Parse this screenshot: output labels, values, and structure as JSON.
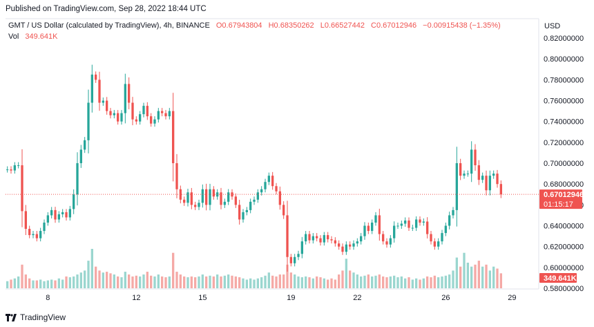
{
  "header": {
    "published": "Published on TradingView.com, Sep 28, 2022 18:44 UTC"
  },
  "legend": {
    "symbol": "GMT / US Dollar (calculated by TradingView), 4h, BINANCE",
    "open": "O0.67943804",
    "high": "H0.68350262",
    "low": "L0.66527442",
    "close": "C0.67012946",
    "change": "−0.00915438 (−1.35%)",
    "vol_label": "Vol",
    "vol_value": "349.641K"
  },
  "price_axis": {
    "currency": "USD",
    "last_price_label": "0.67012946",
    "countdown_label": "01:15:17",
    "volume_label": "349.641K"
  },
  "footer": {
    "logo_text": "TradingView"
  },
  "colors": {
    "up": "#26a69a",
    "down": "#ef5350",
    "vol_up": "#9ad6cf",
    "vol_down": "#f5a9a6"
  },
  "chart_data": {
    "type": "candlestick",
    "ylim": [
      0.58,
      0.83
    ],
    "yticks": [
      0.58,
      0.6,
      0.62,
      0.64,
      0.66,
      0.68,
      0.7,
      0.72,
      0.74,
      0.76,
      0.78,
      0.8,
      0.82
    ],
    "ytick_labels": [
      "0.58000000",
      "0.60000000",
      "0.62000000",
      "0.64000000",
      "0.66000000",
      "0.68000000",
      "0.70000000",
      "0.72000000",
      "0.74000000",
      "0.76000000",
      "0.78000000",
      "0.80000000",
      "0.82000000"
    ],
    "xticks": [
      {
        "label": "8",
        "index": 11
      },
      {
        "label": "12",
        "index": 35
      },
      {
        "label": "15",
        "index": 53
      },
      {
        "label": "19",
        "index": 77
      },
      {
        "label": "22",
        "index": 95
      },
      {
        "label": "26",
        "index": 119
      },
      {
        "label": "29",
        "index": 137
      }
    ],
    "last_price": 0.67012946,
    "close": [
      0.694,
      0.693,
      0.698,
      0.698,
      0.654,
      0.637,
      0.631,
      0.632,
      0.628,
      0.635,
      0.643,
      0.65,
      0.655,
      0.646,
      0.651,
      0.653,
      0.648,
      0.656,
      0.67,
      0.7,
      0.713,
      0.722,
      0.758,
      0.785,
      0.78,
      0.758,
      0.76,
      0.75,
      0.746,
      0.748,
      0.74,
      0.748,
      0.776,
      0.758,
      0.742,
      0.74,
      0.747,
      0.755,
      0.745,
      0.738,
      0.742,
      0.75,
      0.748,
      0.745,
      0.75,
      0.7,
      0.675,
      0.665,
      0.662,
      0.672,
      0.66,
      0.658,
      0.662,
      0.675,
      0.66,
      0.675,
      0.668,
      0.672,
      0.66,
      0.663,
      0.672,
      0.668,
      0.66,
      0.646,
      0.653,
      0.655,
      0.663,
      0.665,
      0.672,
      0.675,
      0.682,
      0.688,
      0.678,
      0.673,
      0.66,
      0.65,
      0.61,
      0.604,
      0.61,
      0.613,
      0.625,
      0.632,
      0.626,
      0.63,
      0.628,
      0.624,
      0.631,
      0.627,
      0.626,
      0.623,
      0.62,
      0.615,
      0.622,
      0.62,
      0.623,
      0.625,
      0.63,
      0.64,
      0.635,
      0.643,
      0.65,
      0.632,
      0.625,
      0.622,
      0.628,
      0.64,
      0.64,
      0.642,
      0.645,
      0.638,
      0.638,
      0.646,
      0.643,
      0.644,
      0.632,
      0.625,
      0.62,
      0.625,
      0.633,
      0.64,
      0.65,
      0.655,
      0.7,
      0.688,
      0.69,
      0.69,
      0.713,
      0.698,
      0.684,
      0.688,
      0.674,
      0.688,
      0.69,
      0.68,
      0.67
    ],
    "volume_unit": "relative",
    "volume": [
      0.18,
      0.22,
      0.25,
      0.3,
      0.6,
      0.35,
      0.25,
      0.2,
      0.2,
      0.22,
      0.18,
      0.2,
      0.22,
      0.2,
      0.25,
      0.22,
      0.3,
      0.28,
      0.3,
      0.35,
      0.4,
      0.45,
      0.7,
      1.0,
      0.55,
      0.45,
      0.4,
      0.42,
      0.38,
      0.35,
      0.3,
      0.28,
      0.42,
      0.35,
      0.3,
      0.32,
      0.3,
      0.35,
      0.42,
      0.32,
      0.3,
      0.35,
      0.3,
      0.28,
      0.3,
      0.9,
      0.42,
      0.35,
      0.3,
      0.28,
      0.3,
      0.28,
      0.3,
      0.35,
      0.3,
      0.32,
      0.3,
      0.35,
      0.3,
      0.32,
      0.35,
      0.32,
      0.3,
      0.28,
      0.25,
      0.22,
      0.25,
      0.22,
      0.25,
      0.28,
      0.32,
      0.4,
      0.32,
      0.3,
      0.35,
      0.35,
      0.6,
      0.4,
      0.35,
      0.3,
      0.28,
      0.3,
      0.28,
      0.25,
      0.3,
      0.28,
      0.25,
      0.22,
      0.25,
      0.22,
      0.35,
      0.45,
      0.75,
      0.45,
      0.4,
      0.35,
      0.3,
      0.32,
      0.35,
      0.3,
      0.32,
      0.35,
      0.3,
      0.28,
      0.3,
      0.32,
      0.28,
      0.3,
      0.25,
      0.28,
      0.22,
      0.25,
      0.22,
      0.25,
      0.3,
      0.28,
      0.32,
      0.28,
      0.3,
      0.32,
      0.35,
      0.45,
      0.78,
      0.55,
      0.9,
      0.65,
      0.55,
      0.6,
      0.7,
      0.55,
      0.6,
      0.45,
      0.55,
      0.5,
      0.38
    ]
  }
}
